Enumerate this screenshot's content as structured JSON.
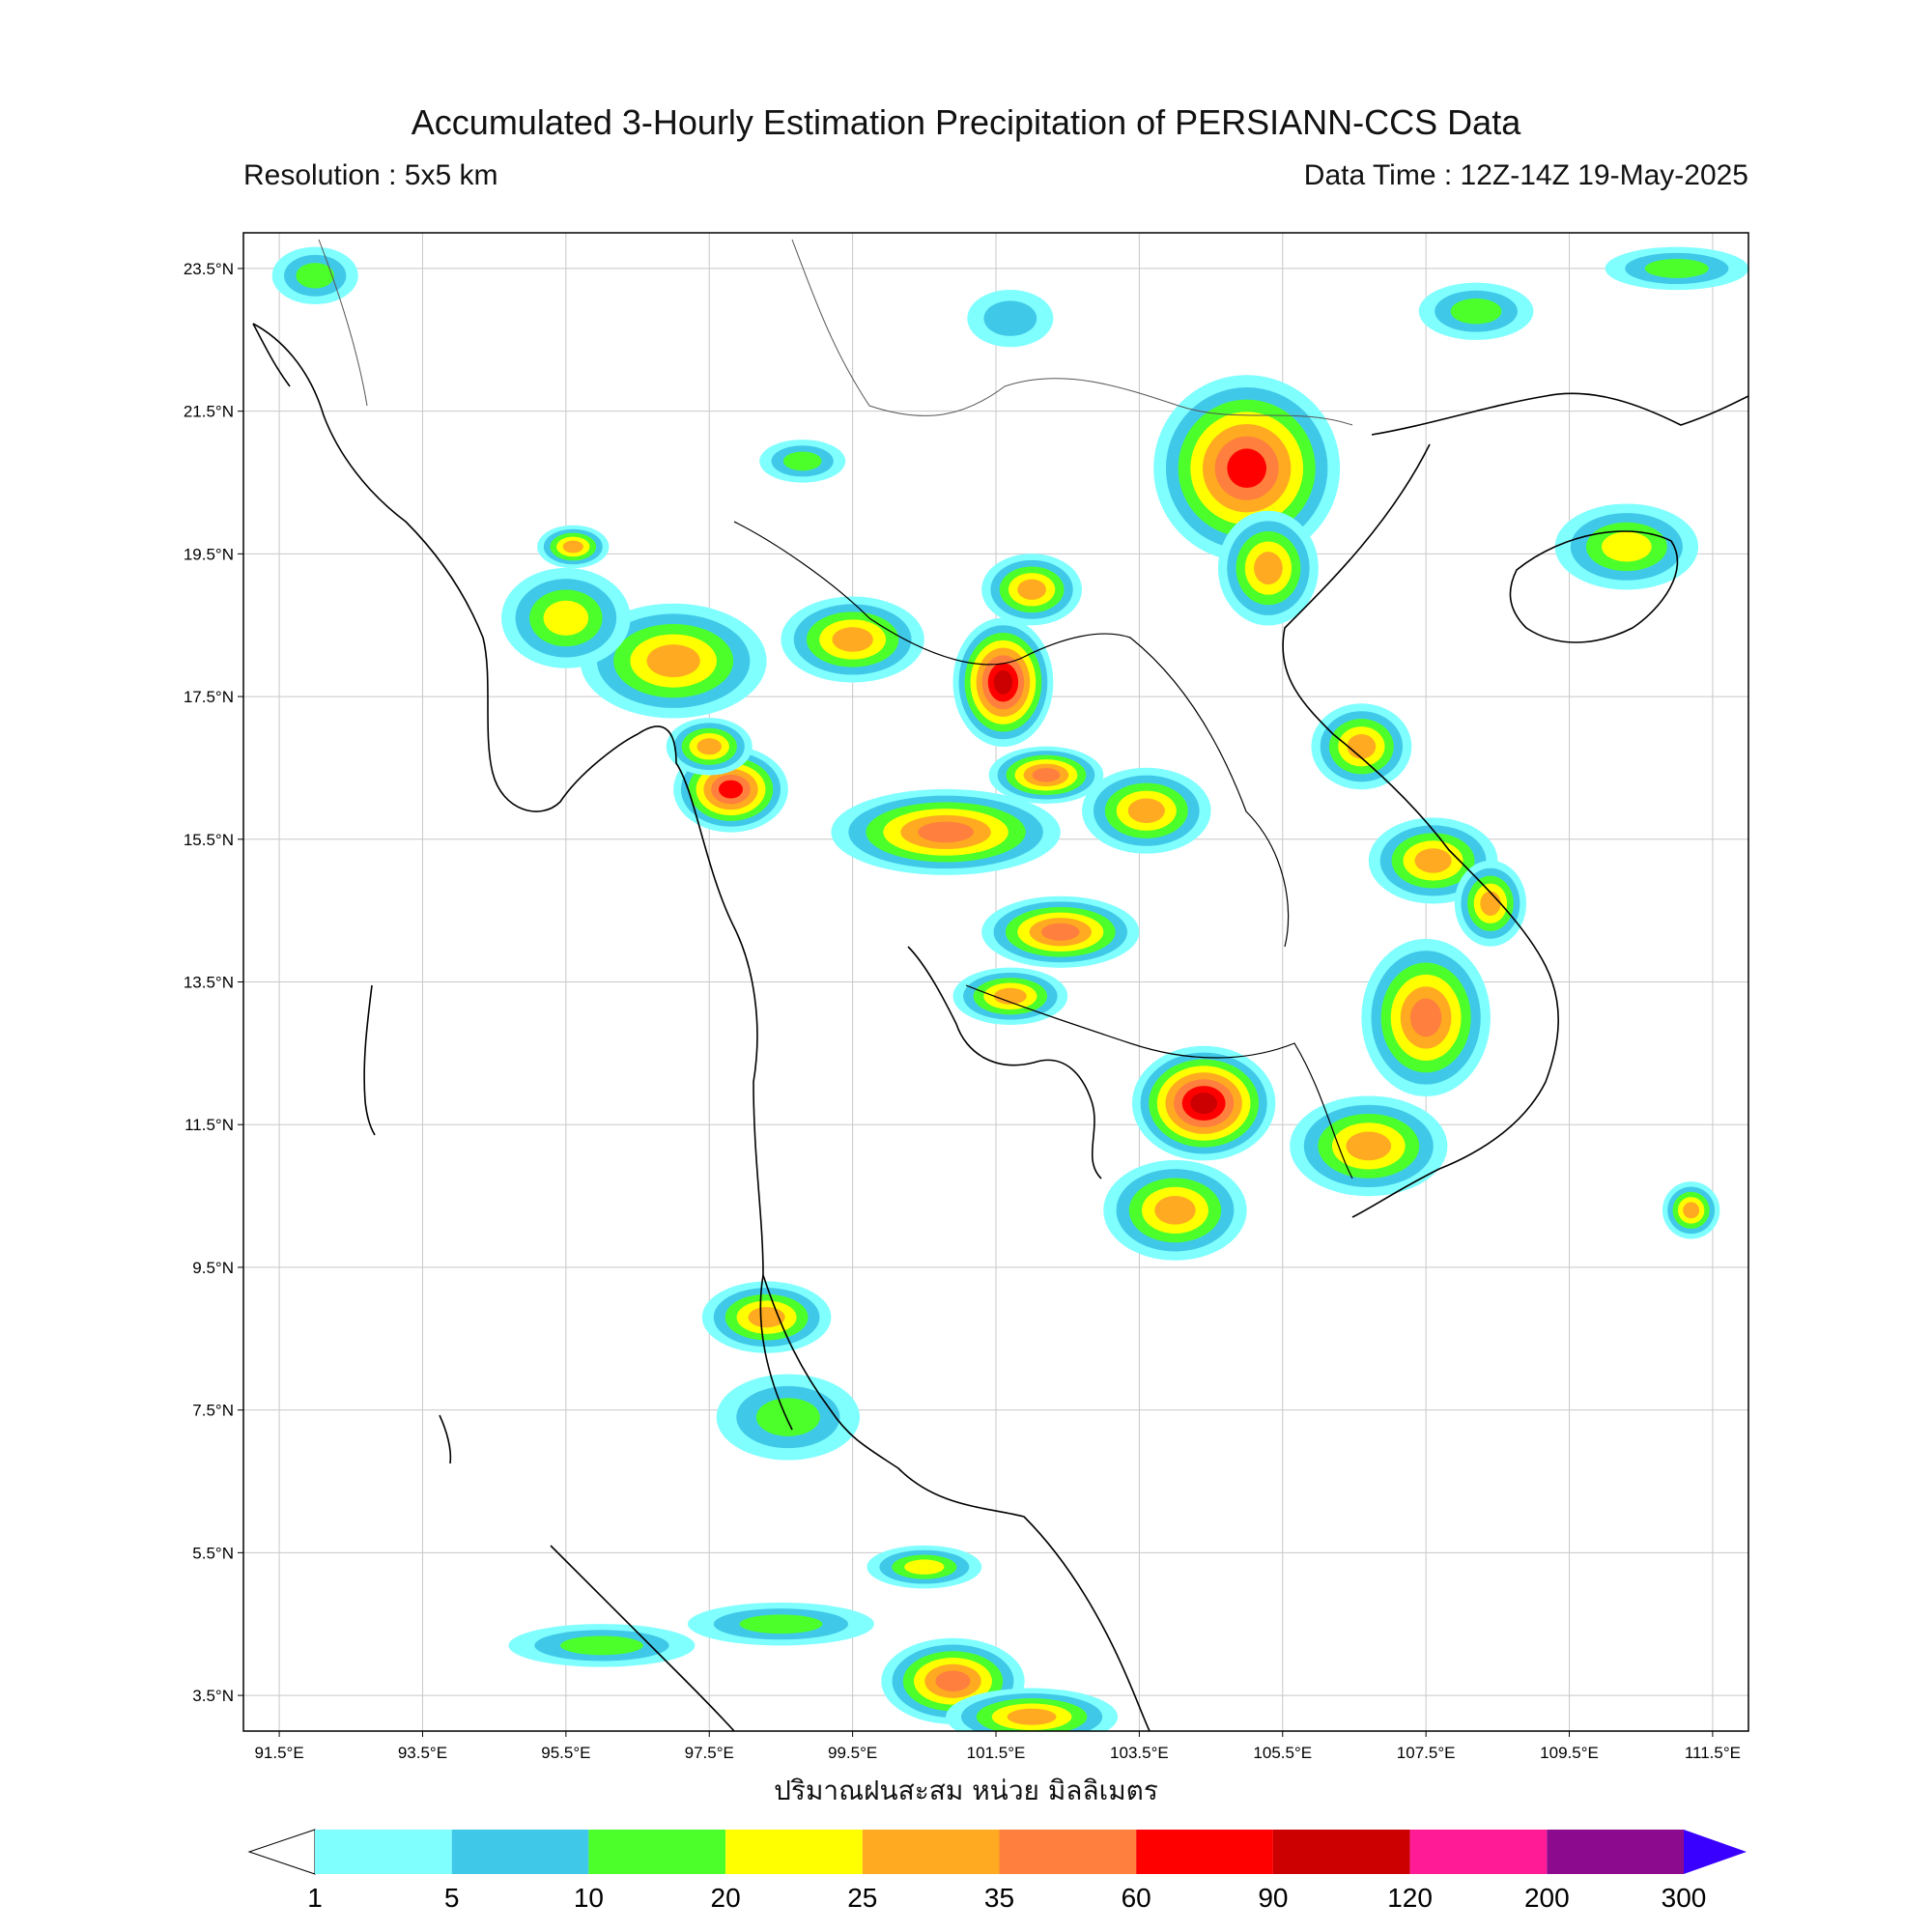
{
  "header": {
    "title": "Accumulated 3-Hourly Estimation Precipitation of PERSIANN-CCS Data",
    "resolution": "Resolution : 5x5 km",
    "data_time": "Data Time : 12Z-14Z 19-May-2025"
  },
  "map": {
    "lon_range": [
      91.0,
      112.0
    ],
    "lat_range": [
      3.0,
      24.0
    ],
    "lat_ticks": [
      "23.5°N",
      "21.5°N",
      "19.5°N",
      "17.5°N",
      "15.5°N",
      "13.5°N",
      "11.5°N",
      "9.5°N",
      "7.5°N",
      "5.5°N",
      "3.5°N"
    ],
    "lon_ticks": [
      "91.5°E",
      "93.5°E",
      "95.5°E",
      "97.5°E",
      "99.5°E",
      "101.5°E",
      "103.5°E",
      "105.5°E",
      "107.5°E",
      "109.5°E",
      "111.5°E"
    ],
    "gridlines": true,
    "rain_cells": [
      {
        "lon": 97.0,
        "lat": 18.0,
        "rx": 1.3,
        "ry": 0.8,
        "level": 25
      },
      {
        "lon": 95.5,
        "lat": 18.6,
        "rx": 0.9,
        "ry": 0.7,
        "level": 20
      },
      {
        "lon": 99.5,
        "lat": 18.3,
        "rx": 1.0,
        "ry": 0.6,
        "level": 25
      },
      {
        "lon": 101.6,
        "lat": 17.7,
        "rx": 0.7,
        "ry": 0.9,
        "level": 90
      },
      {
        "lon": 100.8,
        "lat": 15.6,
        "rx": 1.6,
        "ry": 0.6,
        "level": 35
      },
      {
        "lon": 102.4,
        "lat": 14.2,
        "rx": 1.1,
        "ry": 0.5,
        "level": 35
      },
      {
        "lon": 102.2,
        "lat": 16.4,
        "rx": 0.8,
        "ry": 0.4,
        "level": 35
      },
      {
        "lon": 103.6,
        "lat": 15.9,
        "rx": 0.9,
        "ry": 0.6,
        "level": 25
      },
      {
        "lon": 101.7,
        "lat": 13.3,
        "rx": 0.8,
        "ry": 0.4,
        "level": 25
      },
      {
        "lon": 97.8,
        "lat": 16.2,
        "rx": 0.8,
        "ry": 0.6,
        "level": 60
      },
      {
        "lon": 97.5,
        "lat": 16.8,
        "rx": 0.6,
        "ry": 0.4,
        "level": 25
      },
      {
        "lon": 105.0,
        "lat": 20.7,
        "rx": 1.3,
        "ry": 1.3,
        "level": 60
      },
      {
        "lon": 105.3,
        "lat": 19.3,
        "rx": 0.7,
        "ry": 0.8,
        "level": 25
      },
      {
        "lon": 110.3,
        "lat": 19.6,
        "rx": 1.0,
        "ry": 0.6,
        "level": 20
      },
      {
        "lon": 106.6,
        "lat": 16.8,
        "rx": 0.7,
        "ry": 0.6,
        "level": 25
      },
      {
        "lon": 107.6,
        "lat": 15.2,
        "rx": 0.9,
        "ry": 0.6,
        "level": 25
      },
      {
        "lon": 107.5,
        "lat": 13.0,
        "rx": 0.9,
        "ry": 1.1,
        "level": 35
      },
      {
        "lon": 108.4,
        "lat": 14.6,
        "rx": 0.5,
        "ry": 0.6,
        "level": 25
      },
      {
        "lon": 104.4,
        "lat": 11.8,
        "rx": 1.0,
        "ry": 0.8,
        "level": 90
      },
      {
        "lon": 104.0,
        "lat": 10.3,
        "rx": 1.0,
        "ry": 0.7,
        "level": 25
      },
      {
        "lon": 106.7,
        "lat": 11.2,
        "rx": 1.1,
        "ry": 0.7,
        "level": 25
      },
      {
        "lon": 98.3,
        "lat": 8.8,
        "rx": 0.9,
        "ry": 0.5,
        "level": 25
      },
      {
        "lon": 98.6,
        "lat": 7.4,
        "rx": 1.0,
        "ry": 0.6,
        "level": 10
      },
      {
        "lon": 100.9,
        "lat": 3.7,
        "rx": 1.0,
        "ry": 0.6,
        "level": 35
      },
      {
        "lon": 102.0,
        "lat": 3.2,
        "rx": 1.2,
        "ry": 0.4,
        "level": 25
      },
      {
        "lon": 96.0,
        "lat": 4.2,
        "rx": 1.3,
        "ry": 0.3,
        "level": 10
      },
      {
        "lon": 98.5,
        "lat": 4.5,
        "rx": 1.3,
        "ry": 0.3,
        "level": 10
      },
      {
        "lon": 100.5,
        "lat": 5.3,
        "rx": 0.8,
        "ry": 0.3,
        "level": 20
      },
      {
        "lon": 102.0,
        "lat": 19.0,
        "rx": 0.7,
        "ry": 0.5,
        "level": 25
      },
      {
        "lon": 92.0,
        "lat": 23.4,
        "rx": 0.6,
        "ry": 0.4,
        "level": 10
      },
      {
        "lon": 111.0,
        "lat": 23.5,
        "rx": 1.0,
        "ry": 0.3,
        "level": 10
      },
      {
        "lon": 108.2,
        "lat": 22.9,
        "rx": 0.8,
        "ry": 0.4,
        "level": 10
      },
      {
        "lon": 95.6,
        "lat": 19.6,
        "rx": 0.5,
        "ry": 0.3,
        "level": 25
      },
      {
        "lon": 101.7,
        "lat": 22.8,
        "rx": 0.6,
        "ry": 0.4,
        "level": 5
      },
      {
        "lon": 98.8,
        "lat": 20.8,
        "rx": 0.6,
        "ry": 0.3,
        "level": 10
      },
      {
        "lon": 111.2,
        "lat": 10.3,
        "rx": 0.4,
        "ry": 0.4,
        "level": 25
      }
    ]
  },
  "colorbar": {
    "levels": [
      "1",
      "5",
      "10",
      "20",
      "25",
      "35",
      "60",
      "90",
      "120",
      "200",
      "300"
    ],
    "colors": [
      "#80ffff",
      "#40c8e8",
      "#4cff2a",
      "#ffff00",
      "#ffaa20",
      "#ff7f3e",
      "#ff0000",
      "#cc0000",
      "#ff1a96",
      "#8b0a8e",
      "#3a00ff"
    ],
    "unit_label": "ปริมาณฝนสะสม หน่วย มิลลิเมตร"
  }
}
